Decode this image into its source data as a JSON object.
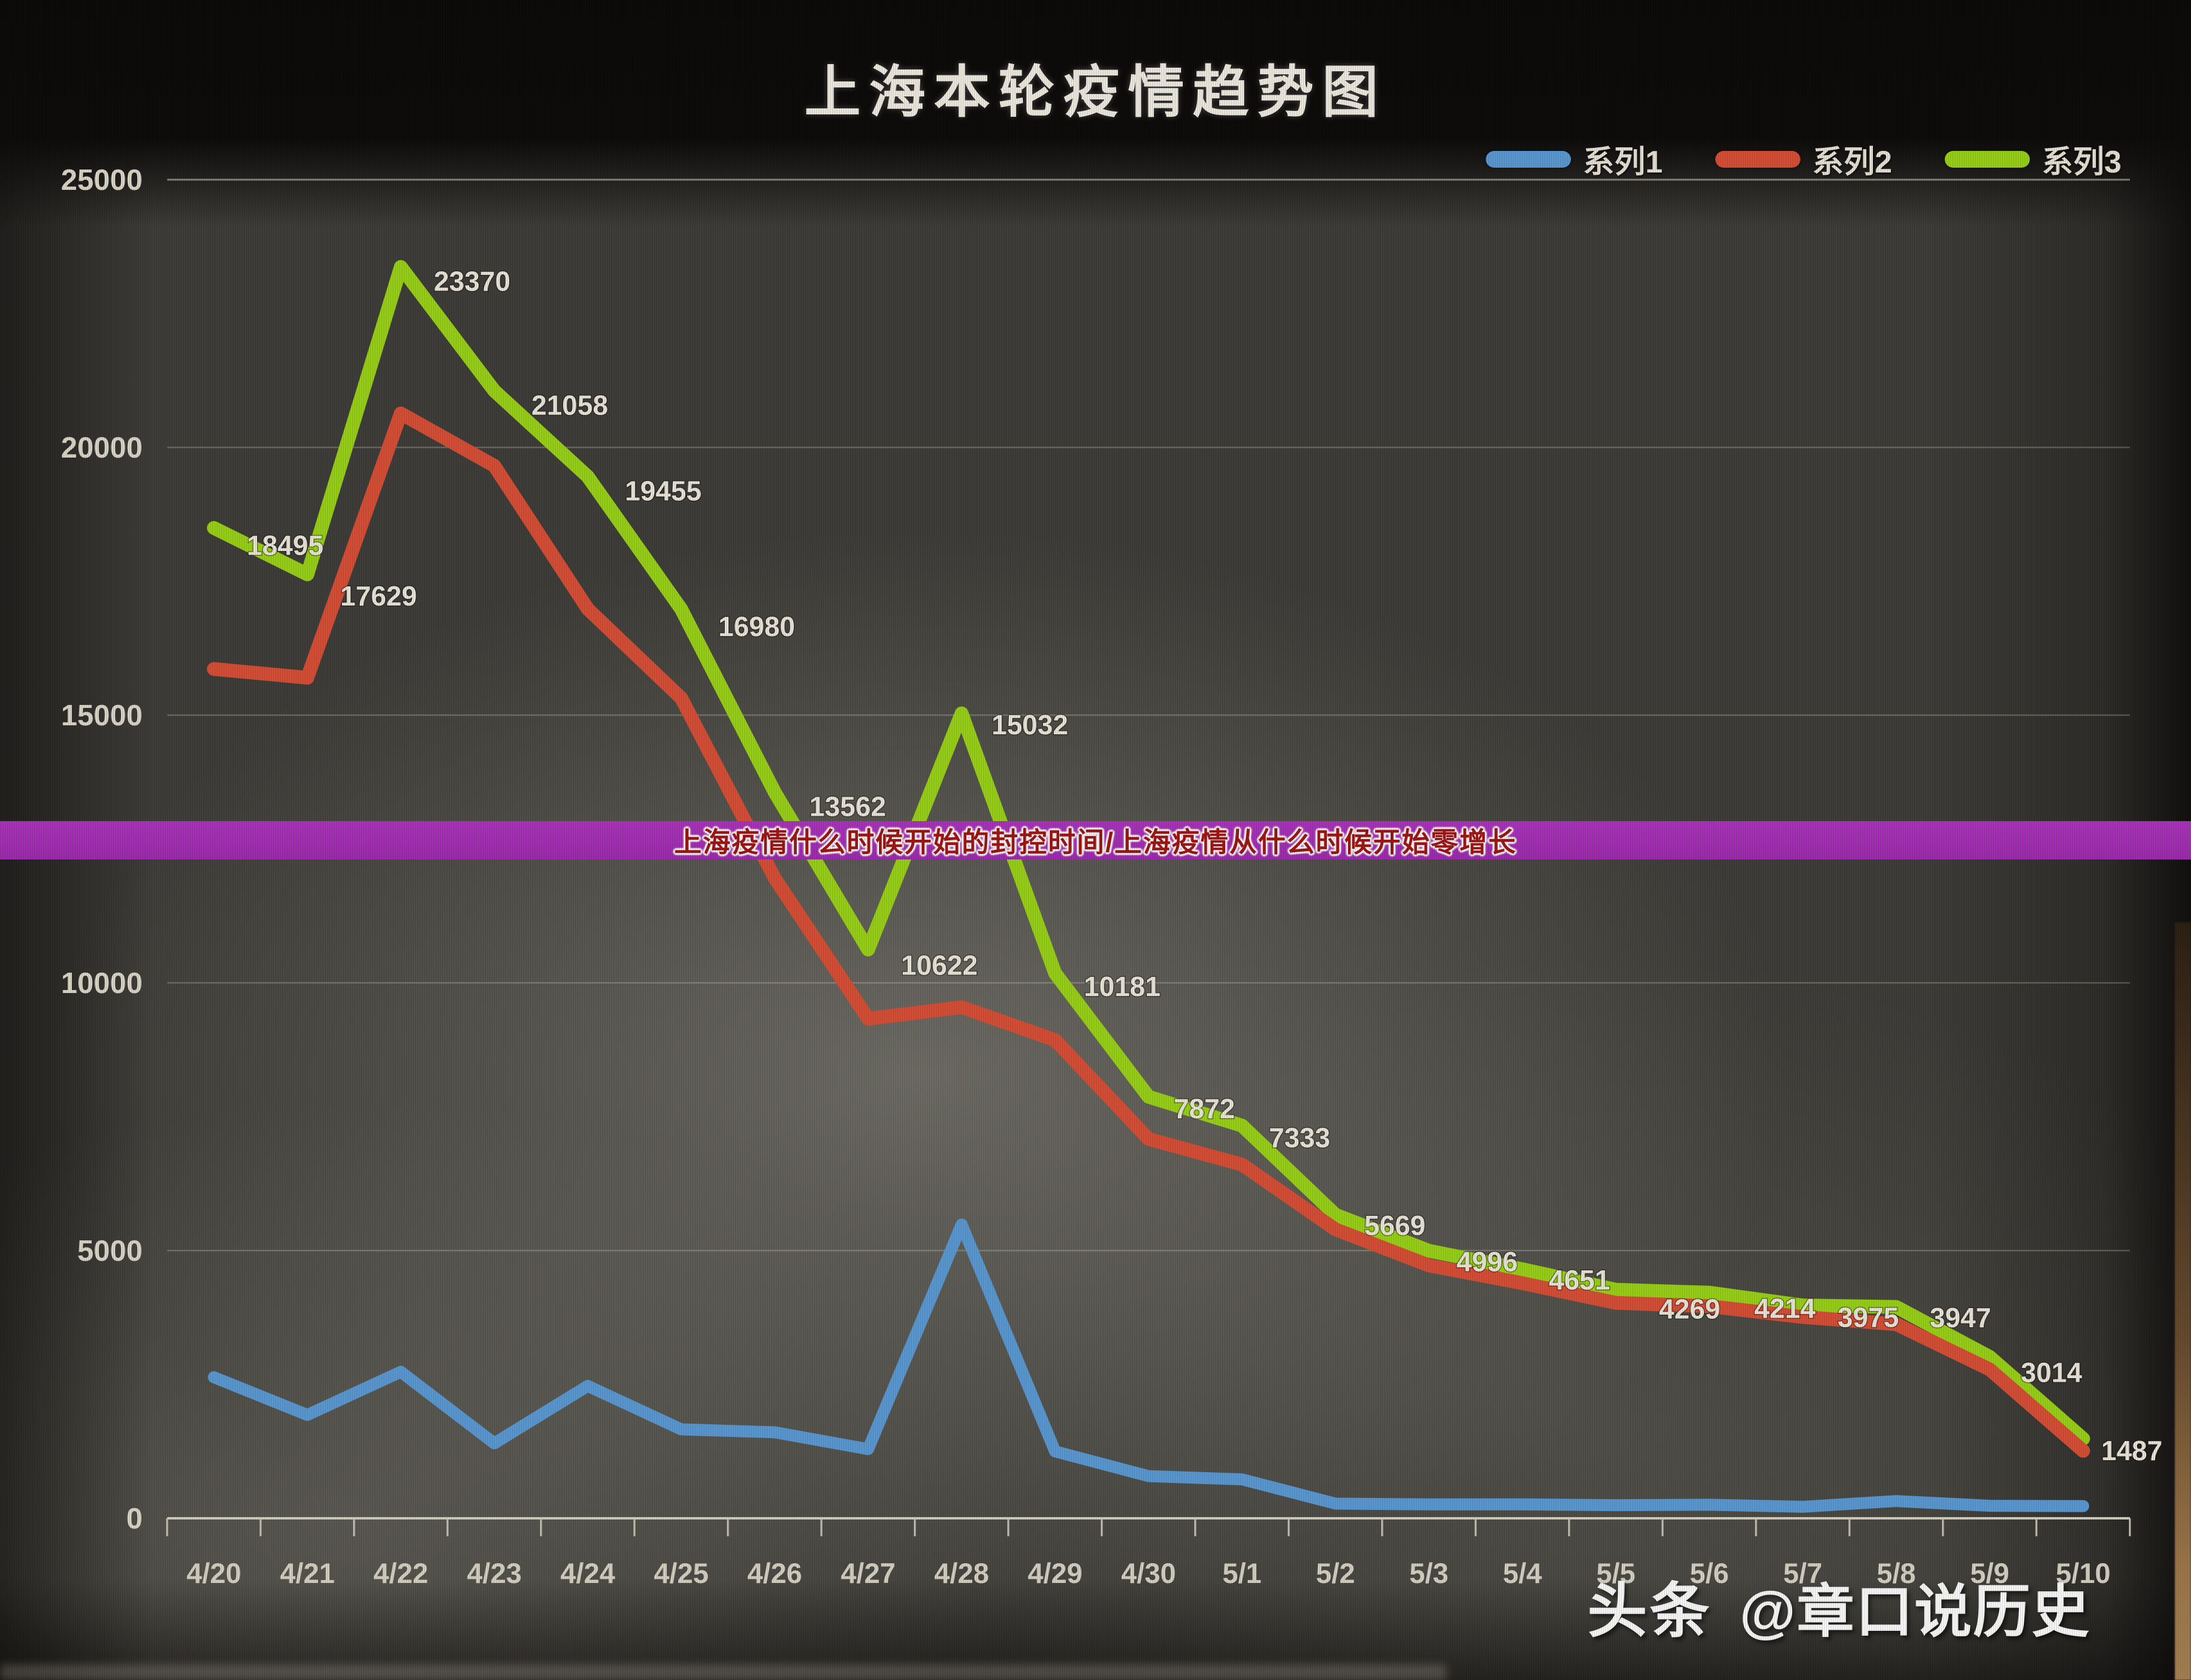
{
  "page": {
    "title": "上海本轮疫情趋势图"
  },
  "banner": {
    "text": "上海疫情什么时候开始的封控时间/上海疫情从什么时候开始零增长",
    "bg_color": "#a52cb4",
    "text_color": "#a11515"
  },
  "watermark": {
    "brand": "头条",
    "handle": "@章口说历史"
  },
  "legend": [
    {
      "label": "系列1",
      "color": "#5b9bd5"
    },
    {
      "label": "系列2",
      "color": "#d94f35"
    },
    {
      "label": "系列3",
      "color": "#9ad414"
    }
  ],
  "chart_data": {
    "type": "line",
    "title": "上海本轮疫情趋势图",
    "categories": [
      "4/20",
      "4/21",
      "4/22",
      "4/23",
      "4/24",
      "4/25",
      "4/26",
      "4/27",
      "4/28",
      "4/29",
      "4/30",
      "5/1",
      "5/2",
      "5/3",
      "5/4",
      "5/5",
      "5/6",
      "5/7",
      "5/8",
      "5/9",
      "5/10"
    ],
    "series": [
      {
        "name": "系列1",
        "color": "#5b9bd5",
        "values": [
          2634,
          1931,
          2736,
          1401,
          2472,
          1661,
          1606,
          1292,
          5487,
          1249,
          788,
          727,
          274,
          260,
          261,
          245,
          253,
          215,
          322,
          234,
          228
        ],
        "data_labels": false
      },
      {
        "name": "系列2",
        "color": "#d94f35",
        "values": [
          15861,
          15698,
          20634,
          19657,
          16983,
          15319,
          11956,
          9330,
          9545,
          8932,
          7084,
          6606,
          5395,
          4722,
          4390,
          4024,
          3961,
          3760,
          3625,
          2780,
          1259
        ],
        "data_labels": false
      },
      {
        "name": "系列3",
        "color": "#9ad414",
        "values": [
          18495,
          17629,
          23370,
          21058,
          19455,
          16980,
          13562,
          10622,
          15032,
          10181,
          7872,
          7333,
          5669,
          4996,
          4651,
          4269,
          4214,
          3975,
          3947,
          3014,
          1487
        ],
        "data_labels": true
      }
    ],
    "ylim": [
      0,
      25000
    ],
    "y_ticks": [
      0,
      5000,
      10000,
      15000,
      20000,
      25000
    ],
    "grid": "horizontal",
    "legend_position": "top-right"
  }
}
